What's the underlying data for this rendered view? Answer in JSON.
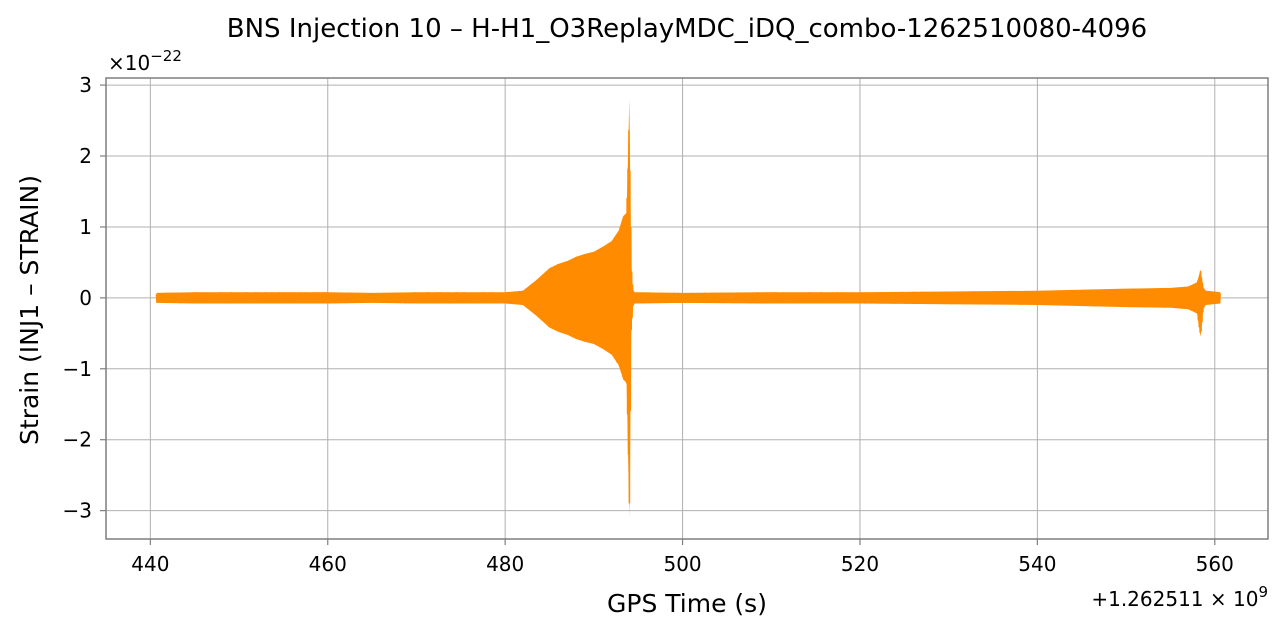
{
  "chart_data": {
    "type": "line",
    "title": "BNS Injection 10 – H-H1_O3ReplayMDC_iDQ_combo-1262510080-4096",
    "xlabel": "GPS Time (s)",
    "ylabel": "Strain (INJ1 – STRAIN)",
    "x_offset_label": "+1.262511 × 10^9",
    "y_scale_label": "×10^−22",
    "xlim": [
      435,
      566
    ],
    "ylim": [
      -3.4,
      3.1
    ],
    "x_ticks": [
      440,
      460,
      480,
      500,
      520,
      540,
      560
    ],
    "y_ticks": [
      -3,
      -2,
      -1,
      0,
      1,
      2,
      3
    ],
    "x_tick_labels": [
      "440",
      "460",
      "480",
      "500",
      "520",
      "540",
      "560"
    ],
    "y_tick_labels": [
      "−3",
      "−2",
      "−1",
      "0",
      "1",
      "2",
      "3"
    ],
    "grid": true,
    "series": [
      {
        "color": "#ff8c00",
        "envelope": {
          "x": [
            440.7,
            445,
            450,
            455,
            460,
            465,
            470,
            475,
            480,
            482,
            483.5,
            485,
            486,
            487,
            488,
            489,
            490,
            491,
            492,
            492.8,
            493.3,
            493.7,
            494.0,
            494.2,
            494.4,
            494.6,
            495,
            500,
            510,
            520,
            530,
            540,
            550,
            555,
            557,
            558,
            558.4,
            558.7,
            559,
            560.6
          ],
          "upper": [
            0.07,
            0.08,
            0.08,
            0.08,
            0.08,
            0.07,
            0.08,
            0.08,
            0.08,
            0.1,
            0.25,
            0.42,
            0.48,
            0.52,
            0.58,
            0.62,
            0.65,
            0.72,
            0.8,
            0.95,
            1.15,
            1.2,
            2.8,
            0.5,
            0.12,
            0.08,
            0.08,
            0.07,
            0.08,
            0.08,
            0.09,
            0.1,
            0.13,
            0.14,
            0.16,
            0.22,
            0.4,
            0.15,
            0.1,
            0.08
          ],
          "lower": [
            -0.07,
            -0.08,
            -0.08,
            -0.08,
            -0.08,
            -0.07,
            -0.08,
            -0.08,
            -0.08,
            -0.1,
            -0.25,
            -0.42,
            -0.48,
            -0.52,
            -0.58,
            -0.62,
            -0.65,
            -0.72,
            -0.8,
            -0.95,
            -1.15,
            -1.2,
            -3.1,
            -0.5,
            -0.12,
            -0.08,
            -0.08,
            -0.07,
            -0.08,
            -0.08,
            -0.09,
            -0.1,
            -0.13,
            -0.14,
            -0.16,
            -0.22,
            -0.55,
            -0.15,
            -0.1,
            -0.08
          ]
        }
      }
    ]
  }
}
